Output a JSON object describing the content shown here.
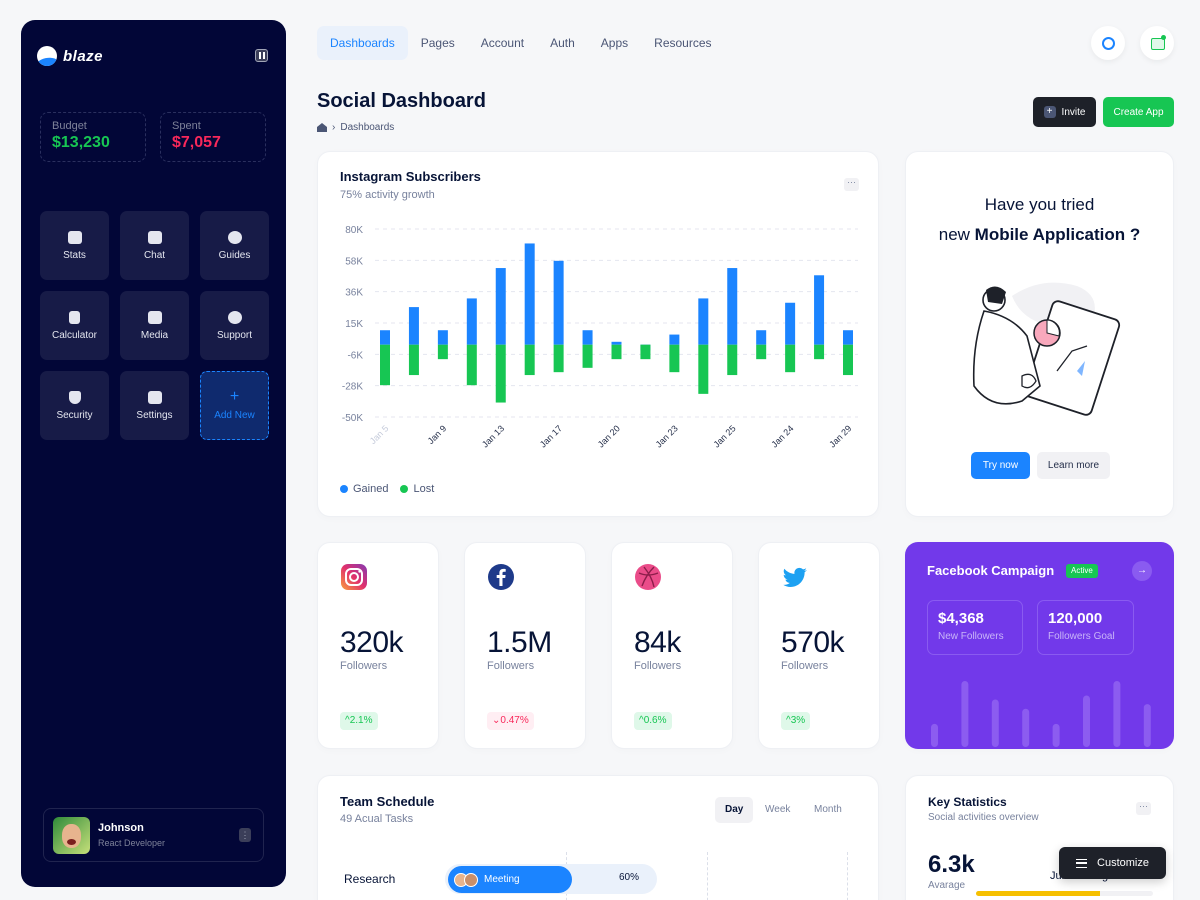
{
  "sidebar": {
    "brand": "blaze",
    "budget": {
      "label": "Budget",
      "value": "$13,230"
    },
    "spent": {
      "label": "Spent",
      "value": "$7,057"
    },
    "tiles": [
      {
        "label": "Stats",
        "icon": "chart-icon"
      },
      {
        "label": "Chat",
        "icon": "chat-icon"
      },
      {
        "label": "Guides",
        "icon": "book-icon"
      },
      {
        "label": "Calculator",
        "icon": "calculator-icon"
      },
      {
        "label": "Media",
        "icon": "image-icon"
      },
      {
        "label": "Support",
        "icon": "support-icon"
      },
      {
        "label": "Security",
        "icon": "shield-icon"
      },
      {
        "label": "Settings",
        "icon": "sliders-icon"
      },
      {
        "label": "Add New",
        "icon": "plus-icon"
      }
    ],
    "user": {
      "name": "Johnson",
      "role": "React Developer"
    }
  },
  "nav": {
    "items": [
      "Dashboards",
      "Pages",
      "Account",
      "Auth",
      "Apps",
      "Resources"
    ],
    "active": "Dashboards"
  },
  "header": {
    "title": "Social Dashboard",
    "breadcrumb": "Dashboards",
    "invite_label": "Invite",
    "create_label": "Create App"
  },
  "instagram": {
    "title": "Instagram Subscribers",
    "subtitle": "75% activity growth",
    "chart_data": {
      "type": "bar",
      "categories": [
        "Jan 5",
        "",
        "Jan 9",
        "",
        "Jan 13",
        "",
        "Jan 17",
        "",
        "Jan 20",
        "",
        "Jan 23",
        "",
        "Jan 25",
        "",
        "Jan 24",
        "",
        "Jan 29"
      ],
      "x_tick_labels": [
        "Jan 5",
        "Jan 9",
        "Jan 13",
        "Jan 17",
        "Jan 20",
        "Jan 23",
        "Jan 25",
        "Jan 24",
        "Jan 29"
      ],
      "y_tick_labels": [
        "80K",
        "58K",
        "36K",
        "15K",
        "-6K",
        "-28K",
        "-50K"
      ],
      "ylim": [
        -50,
        80
      ],
      "series": [
        {
          "name": "Gained",
          "color": "#1b84ff",
          "values": [
            10,
            26,
            10,
            32,
            53,
            70,
            58,
            10,
            2,
            -4,
            7,
            32,
            53,
            10,
            29,
            48,
            10
          ]
        },
        {
          "name": "Lost",
          "color": "#17c653",
          "values": [
            -28,
            -21,
            -10,
            -28,
            -40,
            -21,
            -19,
            -16,
            -10,
            -10,
            -19,
            -34,
            -21,
            -10,
            -19,
            -10,
            -21
          ]
        }
      ],
      "grid": true,
      "legend": "bottom-left"
    },
    "legend": {
      "gained": "Gained",
      "lost": "Lost"
    }
  },
  "promo": {
    "line1": "Have you tried",
    "line2_prefix": "new ",
    "line2_bold": "Mobile Application ?",
    "try_label": "Try now",
    "learn_label": "Learn more"
  },
  "social": [
    {
      "network": "instagram",
      "value": "320k",
      "label": "Followers",
      "change": "2.1%",
      "direction": "up",
      "color": "#e1306c"
    },
    {
      "network": "facebook",
      "value": "1.5M",
      "label": "Followers",
      "change": "0.47%",
      "direction": "down",
      "color": "#1e3a8a"
    },
    {
      "network": "dribbble",
      "value": "84k",
      "label": "Followers",
      "change": "0.6%",
      "direction": "up",
      "color": "#ea4c89"
    },
    {
      "network": "twitter",
      "value": "570k",
      "label": "Followers",
      "change": "3%",
      "direction": "up",
      "color": "#1da1f2"
    }
  ],
  "facebook_campaign": {
    "title": "Facebook Campaign",
    "status": "Active",
    "new_followers": {
      "value": "$4,368",
      "label": "New Followers"
    },
    "goal": {
      "value": "120,000",
      "label": "Followers Goal"
    },
    "bars": [
      0.35,
      1.0,
      0.72,
      0.58,
      0.35,
      0.78,
      1.0,
      0.65
    ]
  },
  "schedule": {
    "title": "Team Schedule",
    "subtitle": "49 Acual Tasks",
    "tabs": [
      "Day",
      "Week",
      "Month"
    ],
    "active_tab": "Day",
    "row_label": "Research",
    "event": "Meeting",
    "percent": "60%"
  },
  "key_stats": {
    "title": "Key Statistics",
    "subtitle": "Social activities overview",
    "value": "6.3k",
    "label": "Avarage",
    "range": "Jul 21 - Aug 21",
    "progress": 0.7
  },
  "customize_label": "Customize"
}
